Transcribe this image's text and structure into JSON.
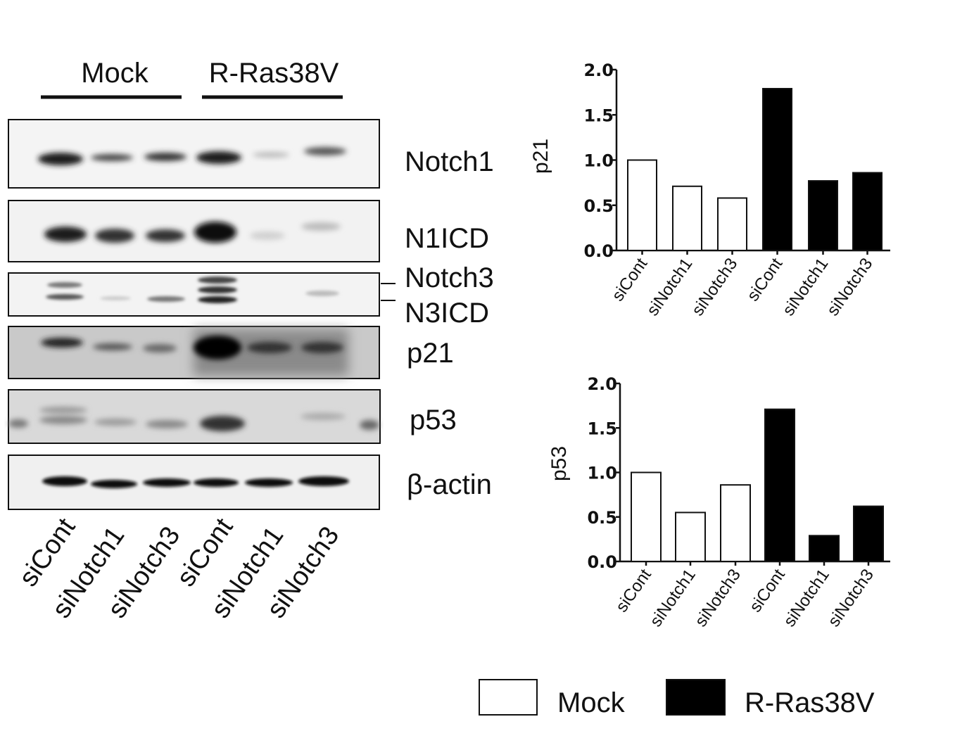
{
  "western_blot": {
    "groups": [
      "Mock",
      "R-Ras38V"
    ],
    "lanes": [
      "siCont",
      "siNotch1",
      "siNotch3",
      "siCont",
      "siNotch1",
      "siNotch3"
    ],
    "proteins": [
      "Notch1",
      "N1ICD",
      "Notch3",
      "N3ICD",
      "p21",
      "p53",
      "β-actin"
    ]
  },
  "legend": {
    "items": [
      {
        "label": "Mock",
        "color": "#ffffff"
      },
      {
        "label": "R-Ras38V",
        "color": "#000000"
      }
    ]
  },
  "chart_data": [
    {
      "type": "bar",
      "ylabel": "p21",
      "xlabel": "",
      "categories": [
        "siCont",
        "siNotch1",
        "siNotch3",
        "siCont",
        "siNotch1",
        "siNotch3"
      ],
      "values": [
        1.0,
        0.71,
        0.58,
        1.79,
        0.77,
        0.86
      ],
      "groups": [
        "Mock",
        "Mock",
        "Mock",
        "R-Ras38V",
        "R-Ras38V",
        "R-Ras38V"
      ],
      "ylim": [
        0,
        2.0
      ],
      "yticks": [
        "0.0",
        "0.5",
        "1.0",
        "1.5",
        "2.0"
      ],
      "grid": false
    },
    {
      "type": "bar",
      "ylabel": "p53",
      "xlabel": "",
      "categories": [
        "siCont",
        "siNotch1",
        "siNotch3",
        "siCont",
        "siNotch1",
        "siNotch3"
      ],
      "values": [
        1.0,
        0.55,
        0.86,
        1.71,
        0.29,
        0.62
      ],
      "groups": [
        "Mock",
        "Mock",
        "Mock",
        "R-Ras38V",
        "R-Ras38V",
        "R-Ras38V"
      ],
      "ylim": [
        0,
        2.0
      ],
      "yticks": [
        "0.0",
        "0.5",
        "1.0",
        "1.5",
        "2.0"
      ],
      "grid": false
    }
  ]
}
